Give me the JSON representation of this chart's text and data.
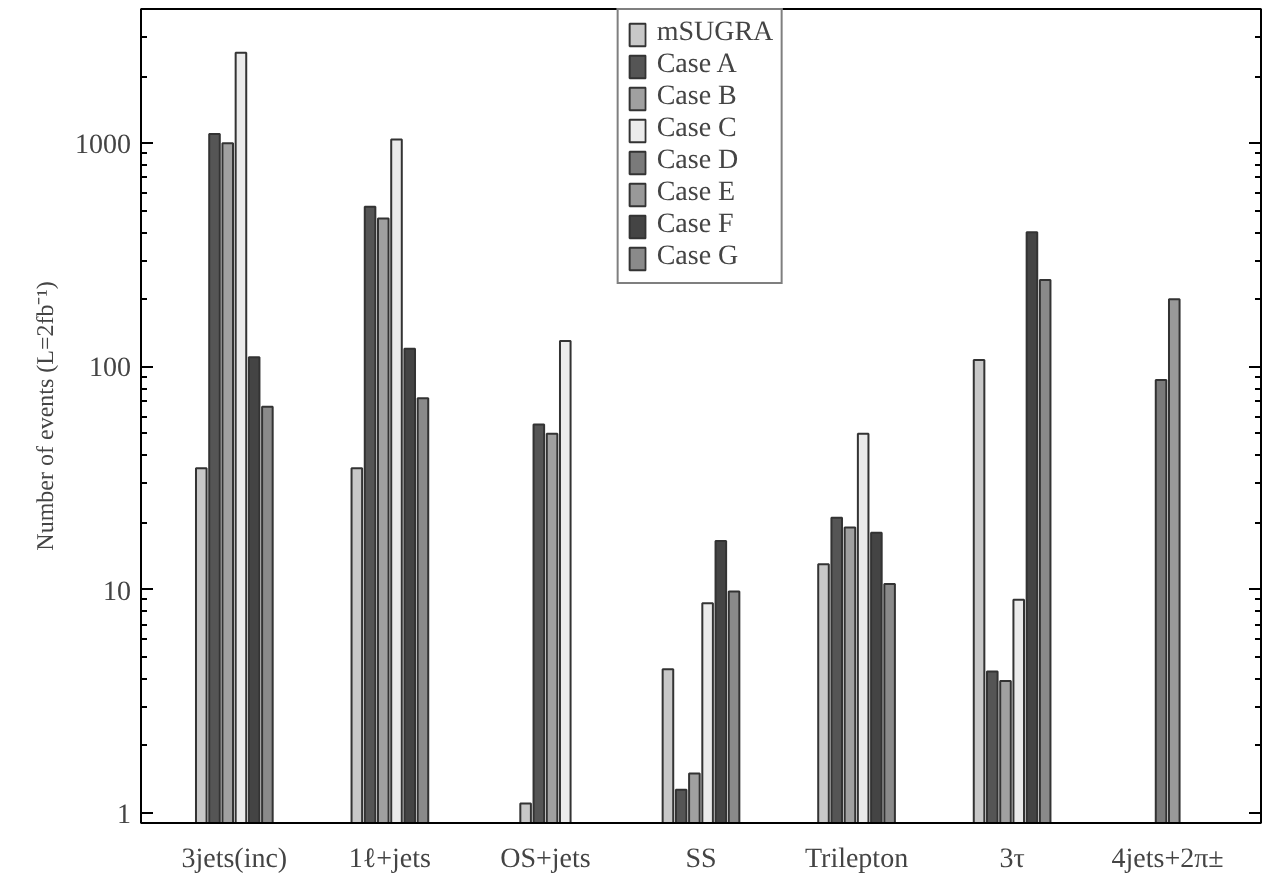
{
  "chart_data": {
    "type": "bar",
    "ylabel": "Number of events (L=2fb⁻¹)",
    "categories": [
      "3jets(inc)",
      "1ℓ+jets",
      "OS+jets",
      "SS",
      "Trilepton",
      "3τ",
      "4jets+2π±"
    ],
    "log": true,
    "ylim": [
      0.9,
      4000
    ],
    "yticks": [
      1,
      10,
      100,
      1000
    ],
    "grid": false,
    "legend": "top",
    "series": [
      {
        "name": "mSUGRA",
        "color": "#c8c8c8",
        "values": [
          35,
          35,
          1.1,
          4.4,
          13,
          107,
          null
        ]
      },
      {
        "name": "Case A",
        "color": "#555555",
        "values": [
          1100,
          520,
          55,
          1.27,
          21,
          4.3,
          null
        ]
      },
      {
        "name": "Case B",
        "color": "#a0a0a0",
        "values": [
          1000,
          460,
          50,
          1.5,
          19,
          3.9,
          null
        ]
      },
      {
        "name": "Case C",
        "color": "#ebebeb",
        "values": [
          2550,
          1040,
          130,
          8.7,
          50,
          9,
          null
        ]
      },
      {
        "name": "Case D",
        "color": "#7a7a7a",
        "values": [
          null,
          null,
          null,
          null,
          null,
          null,
          87
        ]
      },
      {
        "name": "Case E",
        "color": "#999999",
        "values": [
          null,
          null,
          null,
          null,
          null,
          null,
          200
        ]
      },
      {
        "name": "Case F",
        "color": "#444444",
        "values": [
          110,
          120,
          null,
          16.5,
          18,
          400,
          null
        ]
      },
      {
        "name": "Case G",
        "color": "#8a8a8a",
        "values": [
          66,
          72,
          null,
          9.8,
          10.6,
          244,
          null
        ]
      }
    ]
  }
}
